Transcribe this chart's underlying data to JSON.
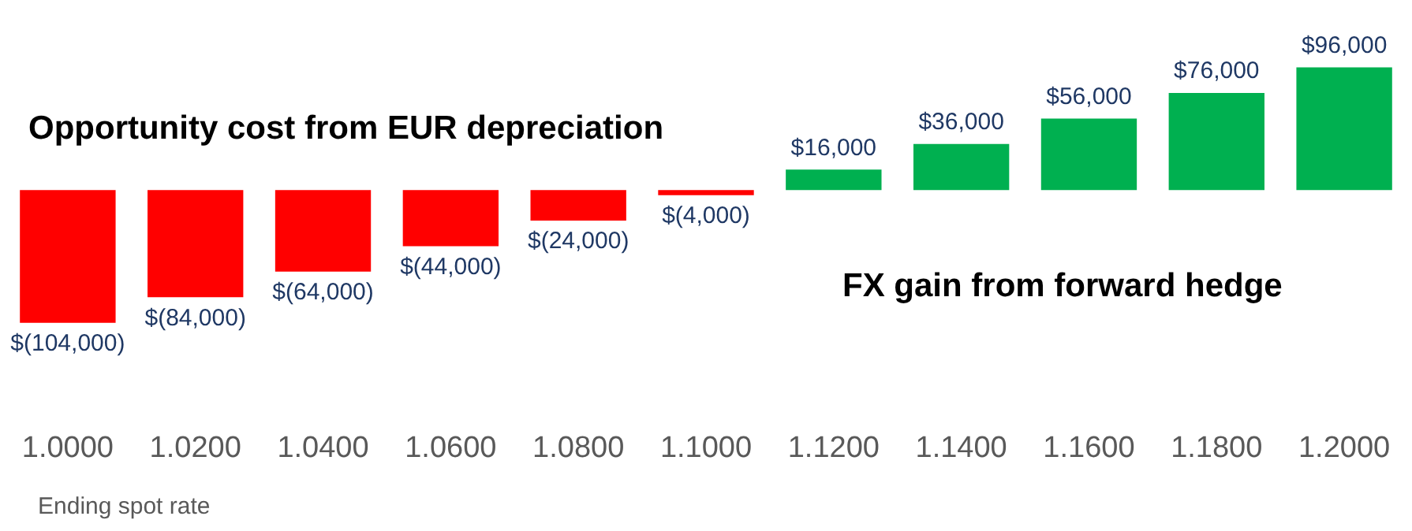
{
  "chart_data": {
    "type": "bar",
    "categories": [
      "1.0000",
      "1.0200",
      "1.0400",
      "1.0600",
      "1.0800",
      "1.1000",
      "1.1200",
      "1.1400",
      "1.1600",
      "1.1800",
      "1.2000"
    ],
    "values": [
      -104000,
      -84000,
      -64000,
      -44000,
      -24000,
      -4000,
      16000,
      36000,
      56000,
      76000,
      96000
    ],
    "colors": [
      "#ff0000",
      "#ff0000",
      "#ff0000",
      "#ff0000",
      "#ff0000",
      "#ff0000",
      "#00b050",
      "#00b050",
      "#00b050",
      "#00b050",
      "#00b050"
    ],
    "value_labels": [
      "$(104,000)",
      "$(84,000)",
      "$(64,000)",
      "$(44,000)",
      "$(24,000)",
      "$(4,000)",
      "$16,000",
      "$36,000",
      "$56,000",
      "$76,000",
      "$96,000"
    ],
    "xlabel": "Ending spot rate",
    "annotations": [
      "Opportunity cost from EUR depreciation",
      "FX gain from forward hedge"
    ],
    "grid": false,
    "legend": false
  }
}
